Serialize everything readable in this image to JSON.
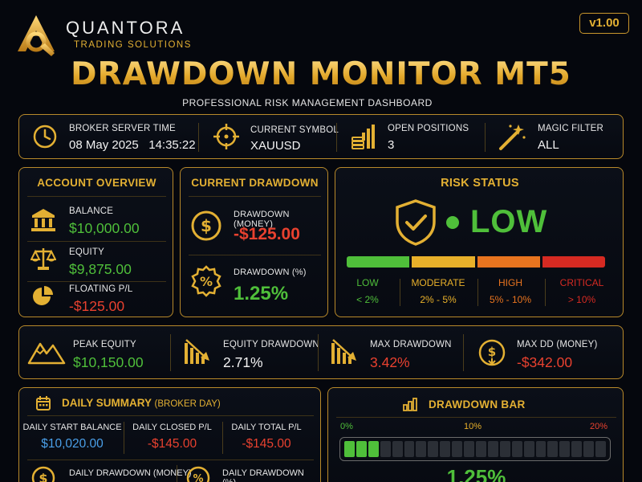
{
  "brand": {
    "name": "QUANTORA",
    "tagline": "TRADING SOLUTIONS",
    "version": "v1.00"
  },
  "header": {
    "title": "DRAWDOWN MONITOR MT5",
    "subtitle": "PROFESSIONAL RISK MANAGEMENT DASHBOARD"
  },
  "info_bar": {
    "server_time_label": "BROKER SERVER TIME",
    "server_time_value": "08 May 2025   14:35:22",
    "symbol_label": "CURRENT SYMBOL",
    "symbol_value": "XAUUSD",
    "positions_label": "OPEN POSITIONS",
    "positions_value": "3",
    "magic_label": "MAGIC FILTER",
    "magic_value": "ALL"
  },
  "account": {
    "title": "ACCOUNT OVERVIEW",
    "balance_label": "BALANCE",
    "balance_value": "$10,000.00",
    "equity_label": "EQUITY",
    "equity_value": "$9,875.00",
    "floating_label": "FLOATING P/L",
    "floating_value": "-$125.00"
  },
  "current_dd": {
    "title": "CURRENT DRAWDOWN",
    "money_label": "DRAWDOWN (MONEY)",
    "money_value": "-$125.00",
    "pct_label": "DRAWDOWN (%)",
    "pct_value": "1.25%"
  },
  "risk": {
    "title": "RISK STATUS",
    "level": "LOW",
    "scale": [
      {
        "name": "LOW",
        "range": "< 2%",
        "color": "#4fbf3a"
      },
      {
        "name": "MODERATE",
        "range": "2% - 5%",
        "color": "#e8b02a"
      },
      {
        "name": "HIGH",
        "range": "5% - 10%",
        "color": "#e8741f"
      },
      {
        "name": "CRITICAL",
        "range": "> 10%",
        "color": "#d62a22"
      }
    ]
  },
  "stats": {
    "peak_label": "PEAK EQUITY",
    "peak_value": "$10,150.00",
    "eq_dd_label": "EQUITY DRAWDOWN",
    "eq_dd_value": "2.71%",
    "max_dd_label": "MAX DRAWDOWN",
    "max_dd_value": "3.42%",
    "max_dd_money_label": "MAX DD (MONEY)",
    "max_dd_money_value": "-$342.00"
  },
  "daily": {
    "title": "DAILY SUMMARY",
    "title_suffix": "(BROKER DAY)",
    "start_label": "DAILY START BALANCE",
    "start_value": "$10,020.00",
    "closed_label": "DAILY CLOSED P/L",
    "closed_value": "-$145.00",
    "total_label": "DAILY TOTAL P/L",
    "total_value": "-$145.00",
    "dd_money_label": "DAILY DRAWDOWN (MONEY)",
    "dd_pct_label": "DAILY DRAWDOWN (%)"
  },
  "dd_bar": {
    "title": "DRAWDOWN BAR",
    "ticks": [
      "0%",
      "10%",
      "20%"
    ],
    "filled_segments": 3,
    "total_segments": 22,
    "value": "1.25%",
    "fill_color": "#4fbf3a"
  },
  "colors": {
    "accent": "#e3b033",
    "positive": "#4fbf3a",
    "negative": "#e8412f",
    "info": "#4a9fe8"
  }
}
